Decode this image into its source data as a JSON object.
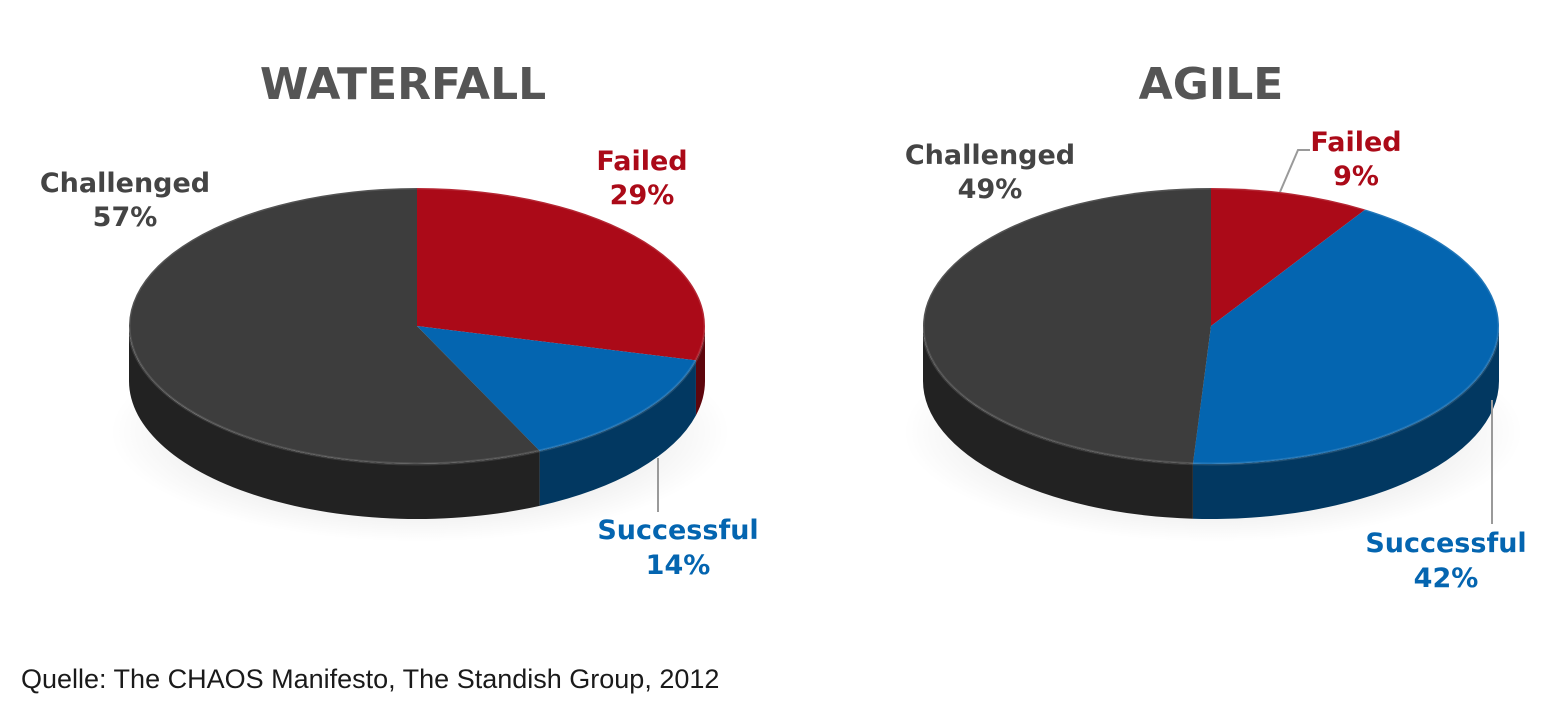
{
  "source": "Quelle: The CHAOS Manifesto, The Standish Group, 2012",
  "colors": {
    "failed": "#ab0a18",
    "successful": "#0465b0",
    "challenged": "#3d3d3d",
    "title": "#555555"
  },
  "chart_data": [
    {
      "type": "pie",
      "title": "WATERFALL",
      "slices": [
        {
          "label": "Failed",
          "percent_label": "29%",
          "value": 29,
          "color": "#ab0a18"
        },
        {
          "label": "Successful",
          "percent_label": "14%",
          "value": 14,
          "color": "#0465b0"
        },
        {
          "label": "Challenged",
          "percent_label": "57%",
          "value": 57,
          "color": "#3d3d3d"
        }
      ]
    },
    {
      "type": "pie",
      "title": "AGILE",
      "slices": [
        {
          "label": "Failed",
          "percent_label": "9%",
          "value": 9,
          "color": "#ab0a18"
        },
        {
          "label": "Successful",
          "percent_label": "42%",
          "value": 42,
          "color": "#0465b0"
        },
        {
          "label": "Challenged",
          "percent_label": "49%",
          "value": 49,
          "color": "#3d3d3d"
        }
      ]
    }
  ]
}
